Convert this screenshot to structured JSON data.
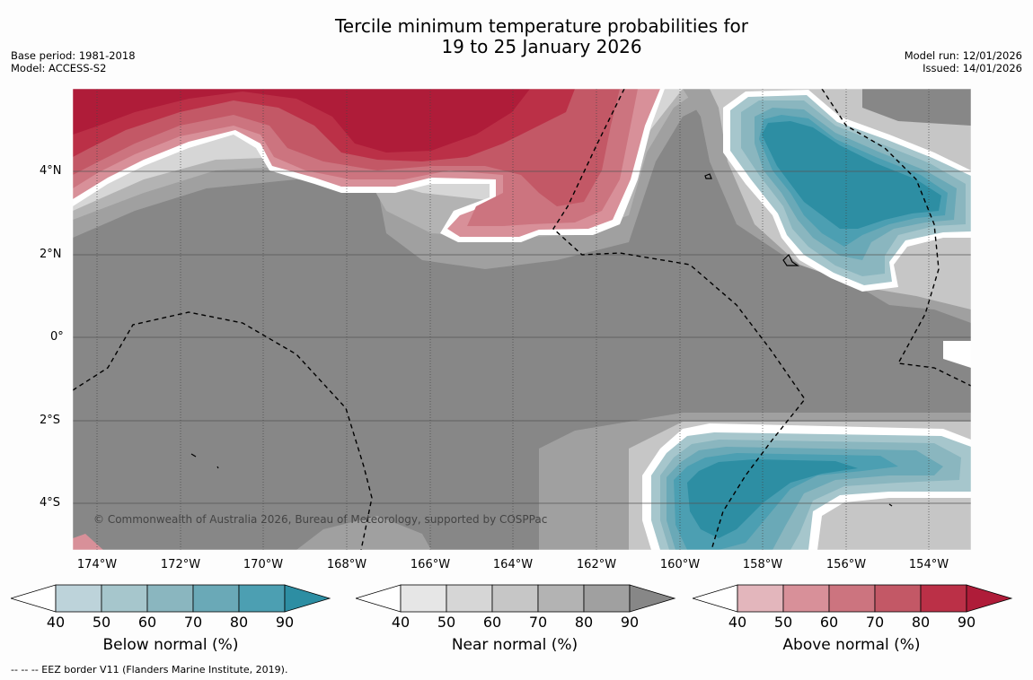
{
  "title_line1": "Tercile minimum temperature probabilities for",
  "title_line2": "19 to 25 January 2026",
  "base_period": "Base period: 1981-2018",
  "model": "Model: ACCESS-S2",
  "model_run": "Model run: 12/01/2026",
  "issued": "Issued: 14/01/2026",
  "lat_labels": [
    "4°N",
    "2°N",
    "0°",
    "2°S",
    "4°S"
  ],
  "lon_labels": [
    "174°W",
    "172°W",
    "170°W",
    "168°W",
    "166°W",
    "164°W",
    "162°W",
    "160°W",
    "158°W",
    "156°W",
    "154°W"
  ],
  "copyright": "© Commonwealth of Australia 2026, Bureau of Meteorology, supported by COSPPac",
  "colorbars": [
    {
      "label": "Below normal (%)",
      "ticks": [
        "40",
        "50",
        "60",
        "70",
        "80",
        "90"
      ],
      "colors": [
        "#ffffff",
        "#bdd3da",
        "#a6c6cc",
        "#8ab6bf",
        "#6aa9b7",
        "#4c9fb2",
        "#2d8ea3"
      ]
    },
    {
      "label": "Near normal (%)",
      "ticks": [
        "40",
        "50",
        "60",
        "70",
        "80",
        "90"
      ],
      "colors": [
        "#ffffff",
        "#e6e6e6",
        "#d6d6d6",
        "#c6c6c6",
        "#b3b3b3",
        "#a0a0a0",
        "#878787"
      ]
    },
    {
      "label": "Above normal (%)",
      "ticks": [
        "40",
        "50",
        "60",
        "70",
        "80",
        "90"
      ],
      "colors": [
        "#ffffff",
        "#e3b6bc",
        "#d89099",
        "#cc747f",
        "#c35866",
        "#bb3047",
        "#af1c39"
      ]
    }
  ],
  "footer": "--  --  -- EEZ border V11 (Flanders Marine Institute, 2019)."
}
